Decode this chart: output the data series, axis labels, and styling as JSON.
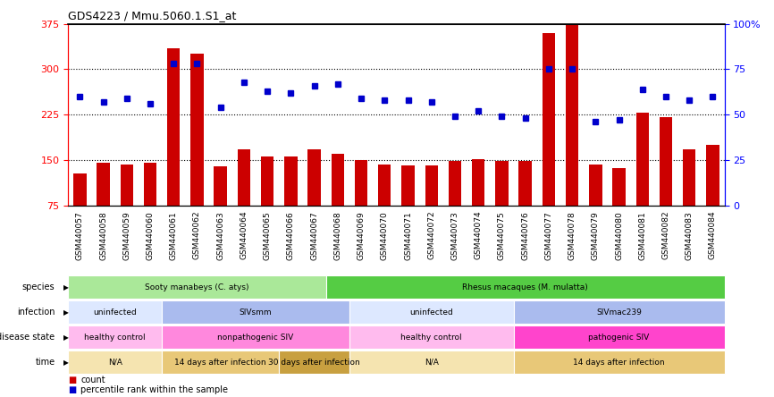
{
  "title": "GDS4223 / Mmu.5060.1.S1_at",
  "samples": [
    "GSM440057",
    "GSM440058",
    "GSM440059",
    "GSM440060",
    "GSM440061",
    "GSM440062",
    "GSM440063",
    "GSM440064",
    "GSM440065",
    "GSM440066",
    "GSM440067",
    "GSM440068",
    "GSM440069",
    "GSM440070",
    "GSM440071",
    "GSM440072",
    "GSM440073",
    "GSM440074",
    "GSM440075",
    "GSM440076",
    "GSM440077",
    "GSM440078",
    "GSM440079",
    "GSM440080",
    "GSM440081",
    "GSM440082",
    "GSM440083",
    "GSM440084"
  ],
  "counts": [
    128,
    145,
    143,
    145,
    335,
    325,
    140,
    168,
    155,
    155,
    168,
    160,
    150,
    143,
    141,
    141,
    148,
    151,
    148,
    148,
    360,
    375,
    143,
    137,
    228,
    220,
    168,
    175
  ],
  "percentile_ranks": [
    60,
    57,
    59,
    56,
    78,
    78,
    54,
    68,
    63,
    62,
    66,
    67,
    59,
    58,
    58,
    57,
    49,
    52,
    49,
    48,
    75,
    75,
    46,
    47,
    64,
    60,
    58,
    60
  ],
  "ylim_left": [
    75,
    375
  ],
  "ylim_right": [
    0,
    100
  ],
  "yticks_left": [
    75,
    150,
    225,
    300,
    375
  ],
  "yticks_right": [
    0,
    25,
    50,
    75,
    100
  ],
  "ytick_labels_right": [
    "0",
    "25",
    "50",
    "75",
    "100%"
  ],
  "bar_color": "#cc0000",
  "dot_color": "#0000cc",
  "annotation_rows": [
    {
      "label": "species",
      "segments": [
        {
          "text": "Sooty manabeys (C. atys)",
          "span": [
            0,
            11
          ],
          "color": "#aae899"
        },
        {
          "text": "Rhesus macaques (M. mulatta)",
          "span": [
            11,
            28
          ],
          "color": "#55cc44"
        }
      ]
    },
    {
      "label": "infection",
      "segments": [
        {
          "text": "uninfected",
          "span": [
            0,
            4
          ],
          "color": "#dde8ff"
        },
        {
          "text": "SIVsmm",
          "span": [
            4,
            12
          ],
          "color": "#aabbee"
        },
        {
          "text": "uninfected",
          "span": [
            12,
            19
          ],
          "color": "#dde8ff"
        },
        {
          "text": "SIVmac239",
          "span": [
            19,
            28
          ],
          "color": "#aabbee"
        }
      ]
    },
    {
      "label": "disease state",
      "segments": [
        {
          "text": "healthy control",
          "span": [
            0,
            4
          ],
          "color": "#ffbbee"
        },
        {
          "text": "nonpathogenic SIV",
          "span": [
            4,
            12
          ],
          "color": "#ff88dd"
        },
        {
          "text": "healthy control",
          "span": [
            12,
            19
          ],
          "color": "#ffbbee"
        },
        {
          "text": "pathogenic SIV",
          "span": [
            19,
            28
          ],
          "color": "#ff44cc"
        }
      ]
    },
    {
      "label": "time",
      "segments": [
        {
          "text": "N/A",
          "span": [
            0,
            4
          ],
          "color": "#f5e4b0"
        },
        {
          "text": "14 days after infection",
          "span": [
            4,
            9
          ],
          "color": "#e8c878"
        },
        {
          "text": "30 days after infection",
          "span": [
            9,
            12
          ],
          "color": "#c8a040"
        },
        {
          "text": "N/A",
          "span": [
            12,
            19
          ],
          "color": "#f5e4b0"
        },
        {
          "text": "14 days after infection",
          "span": [
            19,
            28
          ],
          "color": "#e8c878"
        }
      ]
    }
  ],
  "legend_items": [
    {
      "label": "count",
      "color": "#cc0000"
    },
    {
      "label": "percentile rank within the sample",
      "color": "#0000cc"
    }
  ]
}
